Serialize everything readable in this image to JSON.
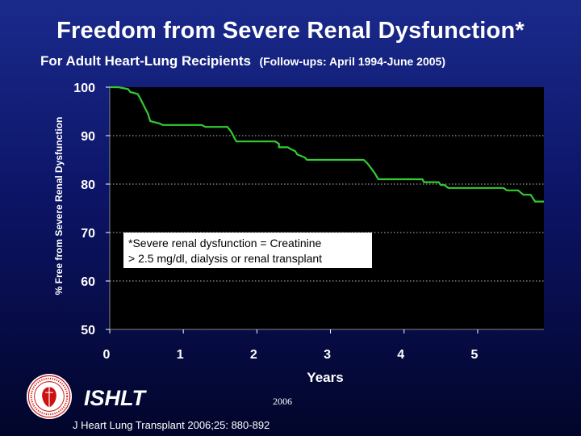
{
  "slide": {
    "title": "Freedom from Severe Renal Dysfunction*",
    "subtitle": "For Adult Heart-Lung Recipients",
    "followups": "(Follow-ups: April 1994-June 2005)",
    "org_label": "ISHLT",
    "year_label": "2006",
    "citation": "J Heart Lung Transplant 2006;25: 880-892"
  },
  "colors": {
    "background_top": "#1a2a8c",
    "background_bottom": "#02052a",
    "plot_area": "#000000",
    "series_line": "#33cc33",
    "text": "#ffffff",
    "logo_red": "#cc1111"
  },
  "chart_data": {
    "type": "line",
    "title": "Freedom from Severe Renal Dysfunction*",
    "xlabel": "Years",
    "ylabel": "% Free from Severe Renal Dysfunction",
    "xlim": [
      0,
      5.9
    ],
    "ylim": [
      50,
      100
    ],
    "xticks": [
      0,
      1,
      2,
      3,
      4,
      5
    ],
    "yticks": [
      50,
      60,
      70,
      80,
      90,
      100
    ],
    "grid": "horizontal dotted at 60, 70, 80, 90",
    "annotation": [
      "*Severe renal dysfunction = Creatinine",
      "> 2.5 mg/dl, dialysis or renal transplant"
    ],
    "series": [
      {
        "x": [
          0,
          0.12,
          0.25,
          0.28,
          0.38,
          0.42,
          0.52,
          0.55,
          0.6,
          0.68,
          0.72,
          1.25,
          1.3,
          1.6,
          1.65,
          1.72,
          2.25,
          2.3,
          2.3,
          2.42,
          2.45,
          2.52,
          2.55,
          2.65,
          2.68,
          3.45,
          3.5,
          3.6,
          3.65,
          4.25,
          4.27,
          4.47,
          4.5,
          4.55,
          4.6,
          5.35,
          5.4,
          5.55,
          5.62,
          5.72,
          5.78,
          5.9
        ],
        "y": [
          100,
          100,
          99.6,
          99,
          98.6,
          97.5,
          94.5,
          93,
          92.8,
          92.5,
          92.2,
          92.2,
          91.8,
          91.8,
          90.8,
          88.8,
          88.8,
          88.3,
          87.6,
          87.6,
          87.3,
          86.8,
          86.1,
          85.5,
          85,
          85,
          84.3,
          82.3,
          81,
          81,
          80.4,
          80.4,
          79.8,
          79.8,
          79.2,
          79.2,
          78.7,
          78.7,
          77.8,
          77.8,
          76.4,
          76.4
        ]
      }
    ]
  }
}
